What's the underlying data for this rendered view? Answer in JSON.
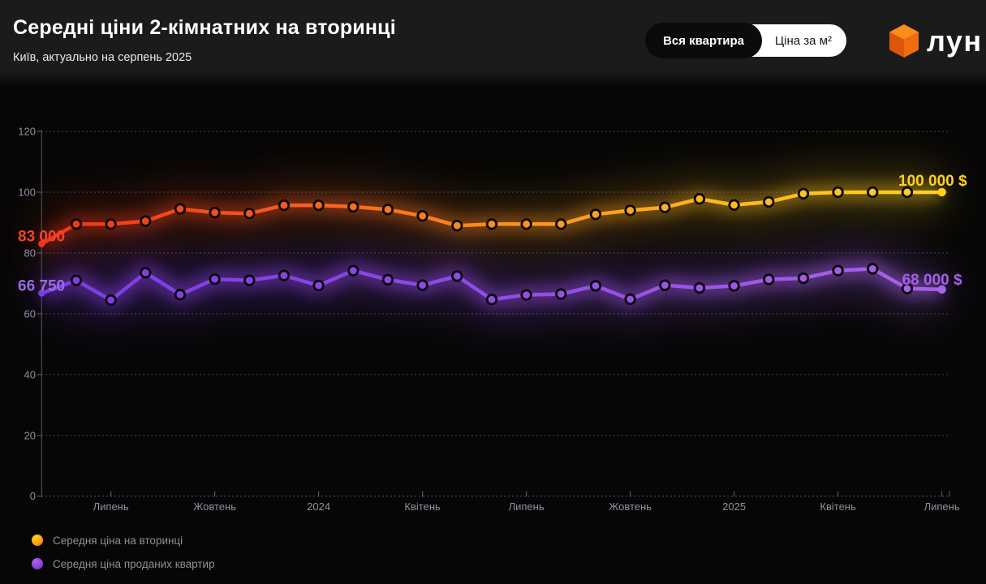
{
  "header": {
    "title": "Середні ціни 2-кімнатних на вторинці",
    "subtitle": "Київ, актуально на серпень 2025",
    "toggle": {
      "options": [
        {
          "label": "Вся квартира",
          "selected": true
        },
        {
          "label": "Ціна за м²",
          "selected": false
        }
      ]
    },
    "logo_text": "лун",
    "logo_colors": {
      "cube_top": "#fb8d1a",
      "cube_left": "#e0540e",
      "cube_right": "#ef6c10"
    }
  },
  "chart_data": {
    "type": "line",
    "y_unit": "thousand USD",
    "ylim": [
      0,
      120
    ],
    "yticks": [
      0,
      20,
      40,
      60,
      80,
      100,
      120
    ],
    "grid": "dotted-horizontal",
    "legend_position": "bottom-left",
    "x": [
      "2023-05",
      "2023-06",
      "2023-07",
      "2023-08",
      "2023-09",
      "2023-10",
      "2023-11",
      "2023-12",
      "2024-01",
      "2024-02",
      "2024-03",
      "2024-04",
      "2024-05",
      "2024-06",
      "2024-07",
      "2024-08",
      "2024-09",
      "2024-10",
      "2024-11",
      "2024-12",
      "2025-01",
      "2025-02",
      "2025-03",
      "2025-04",
      "2025-05",
      "2025-06",
      "2025-07"
    ],
    "xticks": [
      {
        "month_index": 2,
        "label": "Липень"
      },
      {
        "month_index": 5,
        "label": "Жовтень"
      },
      {
        "month_index": 8,
        "label": "2024"
      },
      {
        "month_index": 11,
        "label": "Квітень"
      },
      {
        "month_index": 14,
        "label": "Липень"
      },
      {
        "month_index": 17,
        "label": "Жовтень"
      },
      {
        "month_index": 20,
        "label": "2025"
      },
      {
        "month_index": 23,
        "label": "Квітень"
      },
      {
        "month_index": 26,
        "label": "Липень"
      }
    ],
    "series": [
      {
        "name": "Середня ціна на вторинці",
        "gradient": [
          "#ee3418",
          "#f8561d",
          "#ff8c1c",
          "#fdb81b",
          "#ffd21c"
        ],
        "glow_opacity": 0.4,
        "values": [
          83,
          89.5,
          89.5,
          90.5,
          94.5,
          93.3,
          93,
          95.7,
          95.7,
          95.2,
          94.3,
          92.2,
          89,
          89.5,
          89.5,
          89.5,
          92.7,
          94,
          95,
          97.8,
          95.8,
          96.8,
          99.5,
          100,
          100,
          100,
          100
        ]
      },
      {
        "name": "Середня ціна проданих квартир",
        "gradient": [
          "#7d3ce2",
          "#8a44e4",
          "#9a52e6",
          "#a763ea"
        ],
        "glow_opacity": 0.5,
        "values": [
          66.75,
          71,
          64.5,
          73.5,
          66.3,
          71.4,
          71,
          72.6,
          69.3,
          74.2,
          71.2,
          69.4,
          72.4,
          64.7,
          66.2,
          66.5,
          69.2,
          64.8,
          69.4,
          68.5,
          69.2,
          71.3,
          71.7,
          74.2,
          74.8,
          68.3,
          68
        ]
      }
    ],
    "annotations": [
      {
        "text": "83 000",
        "color": "#f2442c",
        "series": 0,
        "point": "first"
      },
      {
        "text": "100 000 $",
        "color": "#ffd21e",
        "series": 0,
        "point": "last"
      },
      {
        "text": "66 750",
        "color": "#9a6ce0",
        "series": 1,
        "point": "first"
      },
      {
        "text": "68 000 $",
        "color": "#a55fe6",
        "series": 1,
        "point": "last"
      }
    ],
    "axis_text_color": "#8d91a0"
  }
}
